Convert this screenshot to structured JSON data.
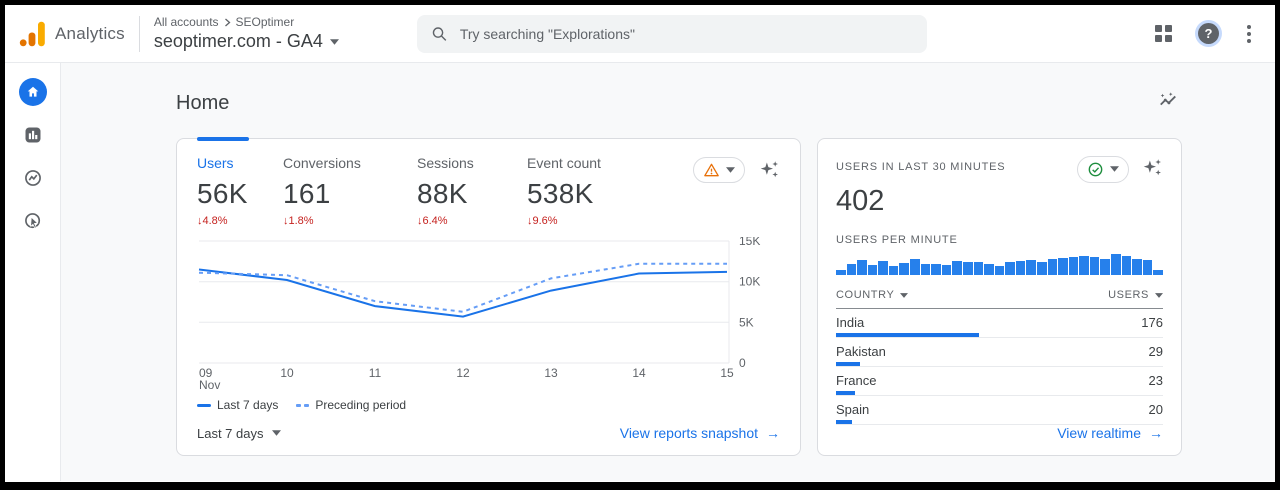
{
  "topbar": {
    "brand": "Analytics",
    "breadcrumb": {
      "root": "All accounts",
      "current": "SEOptimer"
    },
    "property_selector": "seoptimer.com - GA4",
    "search": {
      "placeholder": "Try searching \"Explorations\""
    }
  },
  "icons": {
    "arrow_right": "→",
    "help_glyph": "?"
  },
  "page": {
    "title": "Home"
  },
  "overview_card": {
    "metrics": [
      {
        "label": "Users",
        "value": "56K",
        "delta": "↓4.8%",
        "active": true
      },
      {
        "label": "Conversions",
        "value": "161",
        "delta": "↓1.8%",
        "active": false
      },
      {
        "label": "Sessions",
        "value": "88K",
        "delta": "↓6.4%",
        "active": false
      },
      {
        "label": "Event count",
        "value": "538K",
        "delta": "↓9.6%",
        "active": false
      }
    ],
    "legend": [
      {
        "label": "Last 7 days",
        "style": "solid"
      },
      {
        "label": "Preceding period",
        "style": "dashed"
      }
    ],
    "range_label": "Last 7 days",
    "link": "View reports snapshot"
  },
  "realtime_card": {
    "title": "USERS IN LAST 30 MINUTES",
    "users_in_last_30_min": "402",
    "per_minute_label": "USERS PER MINUTE",
    "table": {
      "columns": [
        "COUNTRY",
        "USERS"
      ],
      "rows": [
        {
          "country": "India",
          "users": 176
        },
        {
          "country": "Pakistan",
          "users": 29
        },
        {
          "country": "France",
          "users": 23
        },
        {
          "country": "Spain",
          "users": 20
        }
      ]
    },
    "link": "View realtime"
  },
  "chart_data": [
    {
      "id": "users-trend",
      "type": "line",
      "title": "Users trend, last 7 days vs preceding period",
      "x": [
        "09 Nov",
        "10",
        "11",
        "12",
        "13",
        "14",
        "15"
      ],
      "series": [
        {
          "name": "Last 7 days",
          "style": "solid",
          "values": [
            11500,
            10200,
            7000,
            5700,
            8900,
            11000,
            11200
          ]
        },
        {
          "name": "Preceding period",
          "style": "dashed",
          "values": [
            11100,
            10800,
            7600,
            6300,
            10400,
            12200,
            12200
          ]
        }
      ],
      "y_ticks": [
        "0",
        "5K",
        "10K",
        "15K"
      ],
      "ylim": [
        0,
        15000
      ],
      "grid": true,
      "y_axis_position": "right",
      "legend_position": "bottom"
    },
    {
      "id": "users-per-minute",
      "type": "bar",
      "title": "Users per minute",
      "values": [
        10,
        22,
        30,
        20,
        28,
        18,
        24,
        33,
        22,
        23,
        20,
        28,
        26,
        26,
        23,
        18,
        26,
        28,
        30,
        26,
        33,
        35,
        36,
        38,
        36,
        33,
        42,
        38,
        33,
        31,
        10
      ],
      "ylim": [
        0,
        45
      ]
    }
  ],
  "colors": {
    "accent_blue": "#1a73e8",
    "light_blue": "#669df6",
    "delta_red": "#c5221f",
    "warning_orange": "#e8710a",
    "success_green": "#1e8e3e",
    "bar_blue": "#2680eb"
  }
}
